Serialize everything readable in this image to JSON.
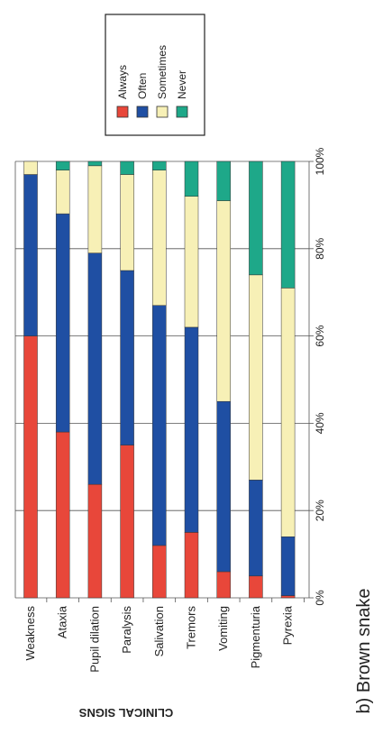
{
  "chart_data": {
    "type": "bar",
    "orientation": "stacked-100-percent",
    "rotated": "90deg-clockwise",
    "categories": [
      "Weakness",
      "Ataxia",
      "Pupil dilation",
      "Paralysis",
      "Salivation",
      "Tremors",
      "Vomiting",
      "Pigmenturia",
      "Pyrexia"
    ],
    "series": [
      {
        "name": "Always",
        "color": "#e8473a",
        "values": [
          60,
          38,
          26,
          35,
          12,
          15,
          6,
          5,
          0.5
        ]
      },
      {
        "name": "Often",
        "color": "#1f4fa3",
        "values": [
          37,
          50,
          53,
          40,
          55,
          47,
          39,
          22,
          13.5
        ]
      },
      {
        "name": "Sometimes",
        "color": "#f7f0b6",
        "values": [
          3,
          10,
          20,
          22,
          31,
          30,
          46,
          47,
          57
        ]
      },
      {
        "name": "Never",
        "color": "#1ea889",
        "values": [
          0,
          2,
          1,
          3,
          2,
          8,
          9,
          26,
          29
        ]
      }
    ],
    "ylim": [
      0,
      100
    ],
    "ytick_labels": [
      "0%",
      "20%",
      "40%",
      "60%",
      "80%",
      "100%"
    ],
    "xlabel": "CLINICAL SIGNS",
    "caption": "b) Brown snake",
    "legend_placement": "top-right",
    "grid": true
  }
}
